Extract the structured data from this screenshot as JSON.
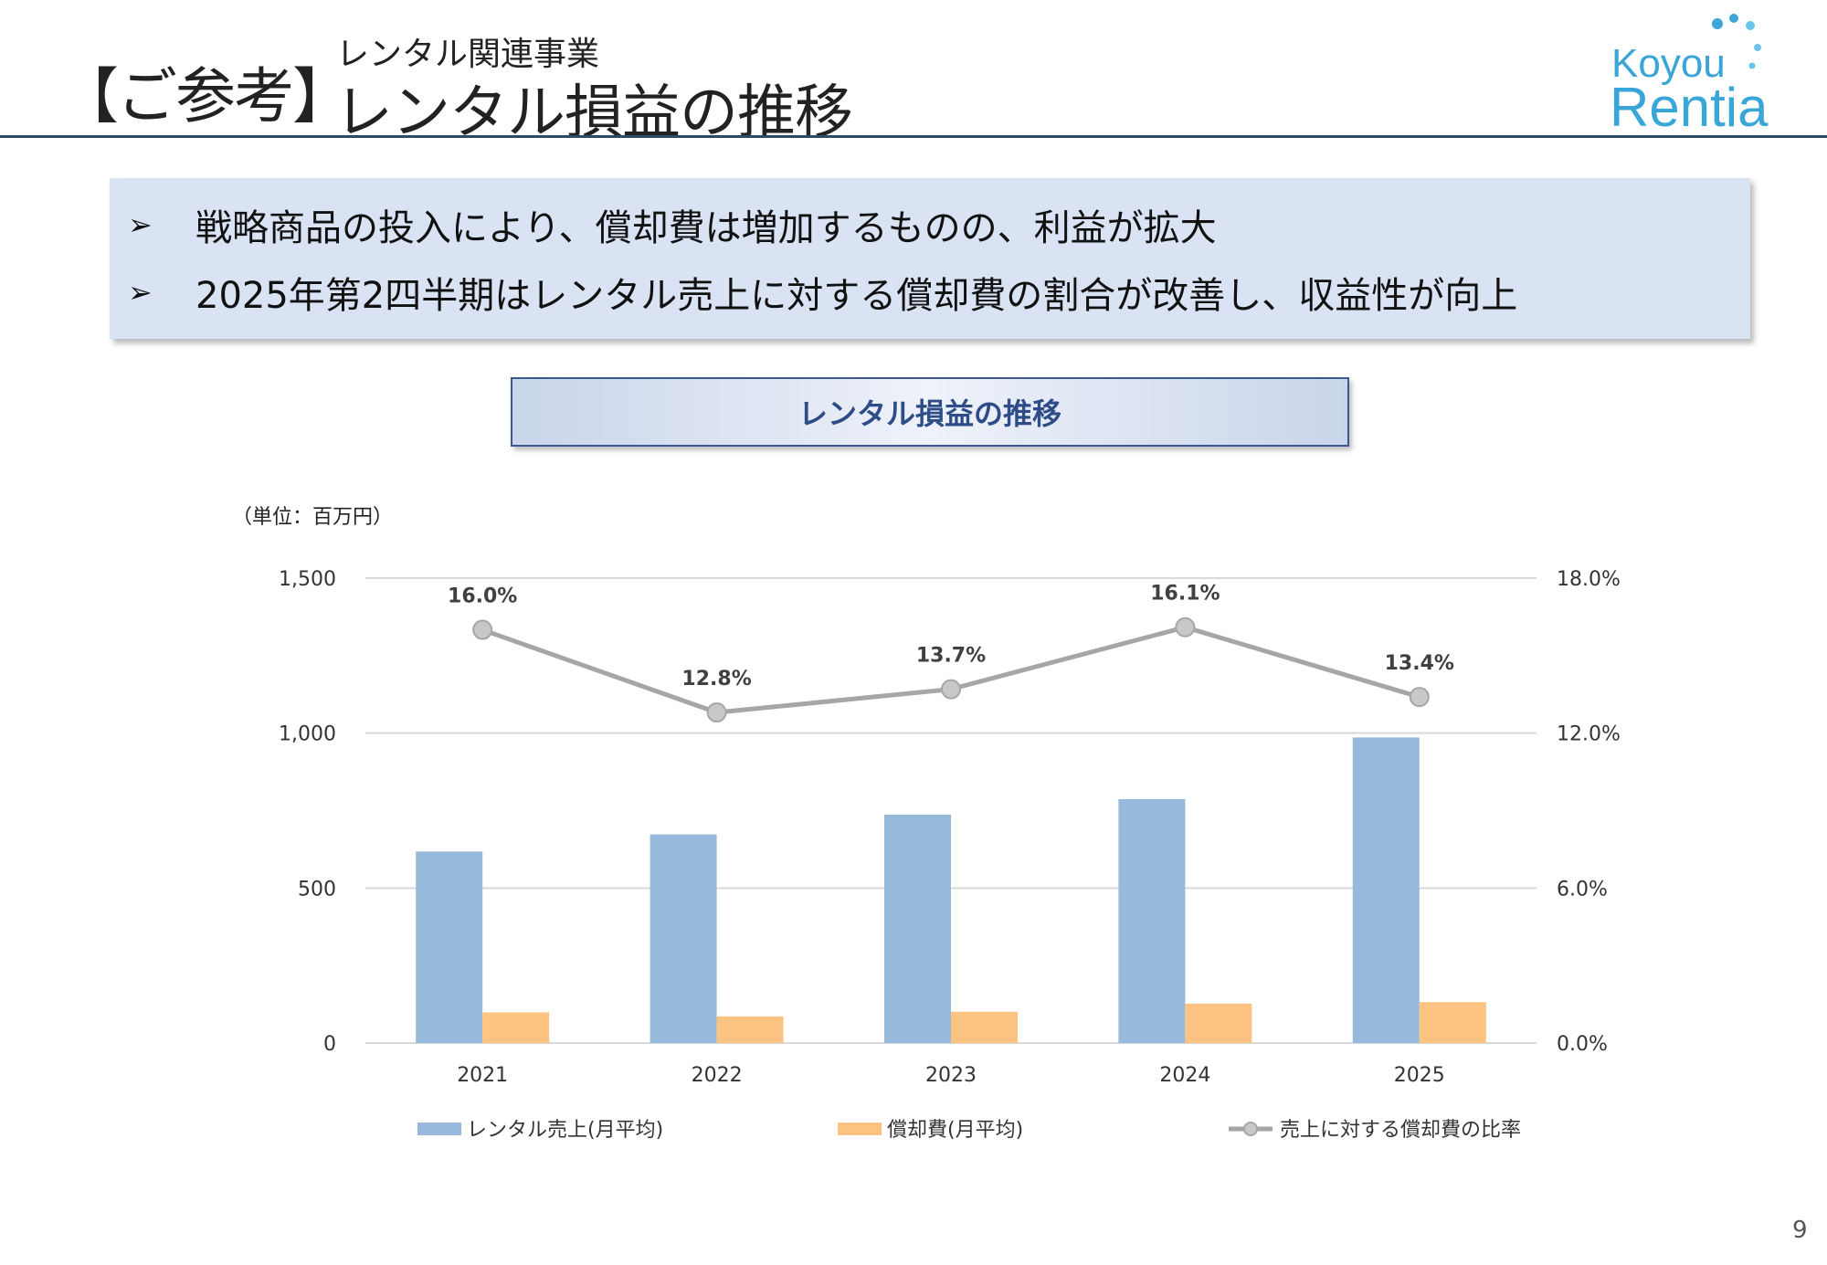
{
  "header": {
    "bracket_title": "【ご参考】",
    "subtitle": "レンタル関連事業",
    "title": "レンタル損益の推移"
  },
  "logo": {
    "line1": "Koyou",
    "line2": "Rentia",
    "colors": {
      "primary": "#3aa6d8",
      "dots": "#6cc3ea"
    }
  },
  "summary": {
    "bullets": [
      {
        "icon": "arrow-bullet-icon",
        "text": "戦略商品の投入により、償却費は増加するものの、利益が拡大"
      },
      {
        "icon": "arrow-bullet-icon",
        "text": "2025年第2四半期はレンタル売上に対する償却費の割合が改善し、収益性が向上"
      }
    ]
  },
  "chart_banner": {
    "title": "レンタル損益の推移"
  },
  "unit_label": "（単位：百万円）",
  "chart_data": {
    "type": "bar",
    "categories": [
      "2021",
      "2022",
      "2023",
      "2024",
      "2025"
    ],
    "series": [
      {
        "name": "レンタル売上(月平均)",
        "type": "bar",
        "axis": "left",
        "color": "#97b9db",
        "values": [
          618,
          673,
          737,
          787,
          986
        ]
      },
      {
        "name": "償却費(月平均)",
        "type": "bar",
        "axis": "left",
        "color": "#fdc382",
        "values": [
          99,
          86,
          101,
          127,
          132
        ]
      },
      {
        "name": "売上に対する償却費の比率",
        "type": "line",
        "axis": "right",
        "color": "#a6a6a6",
        "values": [
          16.0,
          12.8,
          13.7,
          16.1,
          13.4
        ],
        "labels": [
          "16.0%",
          "12.8%",
          "13.7%",
          "16.1%",
          "13.4%"
        ]
      }
    ],
    "y_left": {
      "range": [
        0,
        1500
      ],
      "ticks": [
        0,
        500,
        1000,
        1500
      ],
      "tick_labels": [
        "0",
        "500",
        "1,000",
        "1,500"
      ]
    },
    "y_right": {
      "range": [
        0,
        18
      ],
      "ticks": [
        0,
        6,
        12,
        18
      ],
      "tick_labels": [
        "0.0%",
        "6.0%",
        "12.0%",
        "18.0%"
      ]
    },
    "grid": true,
    "legend_position": "bottom"
  },
  "page_number": "9"
}
